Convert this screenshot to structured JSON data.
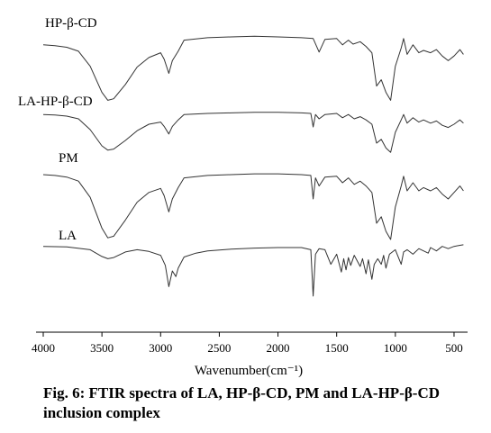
{
  "chart_data": {
    "type": "line",
    "title": "",
    "xlabel": "Wavenumber(cm⁻¹)",
    "ylabel": "",
    "x_reversed": true,
    "xlim": [
      4000,
      400
    ],
    "x_ticks": [
      "4000",
      "3500",
      "3000",
      "2500",
      "2000",
      "1500",
      "1000",
      "500"
    ],
    "grid": false,
    "y_axis_visible": false,
    "line_color": "#333333",
    "series": [
      {
        "name": "HP-β-CD",
        "points": [
          [
            4000,
            0.82
          ],
          [
            3900,
            0.81
          ],
          [
            3800,
            0.79
          ],
          [
            3700,
            0.74
          ],
          [
            3600,
            0.55
          ],
          [
            3500,
            0.22
          ],
          [
            3450,
            0.12
          ],
          [
            3400,
            0.14
          ],
          [
            3300,
            0.32
          ],
          [
            3200,
            0.54
          ],
          [
            3100,
            0.66
          ],
          [
            3000,
            0.72
          ],
          [
            2970,
            0.64
          ],
          [
            2930,
            0.46
          ],
          [
            2900,
            0.62
          ],
          [
            2850,
            0.74
          ],
          [
            2800,
            0.88
          ],
          [
            2600,
            0.91
          ],
          [
            2400,
            0.92
          ],
          [
            2200,
            0.93
          ],
          [
            2000,
            0.92
          ],
          [
            1800,
            0.91
          ],
          [
            1700,
            0.9
          ],
          [
            1650,
            0.73
          ],
          [
            1600,
            0.89
          ],
          [
            1500,
            0.9
          ],
          [
            1450,
            0.82
          ],
          [
            1400,
            0.88
          ],
          [
            1360,
            0.83
          ],
          [
            1300,
            0.86
          ],
          [
            1250,
            0.8
          ],
          [
            1200,
            0.72
          ],
          [
            1160,
            0.3
          ],
          [
            1120,
            0.38
          ],
          [
            1080,
            0.22
          ],
          [
            1040,
            0.12
          ],
          [
            1000,
            0.55
          ],
          [
            950,
            0.78
          ],
          [
            930,
            0.9
          ],
          [
            900,
            0.7
          ],
          [
            850,
            0.82
          ],
          [
            800,
            0.72
          ],
          [
            760,
            0.75
          ],
          [
            700,
            0.72
          ],
          [
            650,
            0.76
          ],
          [
            600,
            0.68
          ],
          [
            550,
            0.62
          ],
          [
            500,
            0.68
          ],
          [
            450,
            0.76
          ],
          [
            420,
            0.7
          ]
        ]
      },
      {
        "name": "LA-HP-β-CD",
        "points": [
          [
            4000,
            0.88
          ],
          [
            3900,
            0.87
          ],
          [
            3800,
            0.85
          ],
          [
            3700,
            0.8
          ],
          [
            3600,
            0.6
          ],
          [
            3500,
            0.3
          ],
          [
            3450,
            0.22
          ],
          [
            3400,
            0.24
          ],
          [
            3300,
            0.4
          ],
          [
            3200,
            0.58
          ],
          [
            3100,
            0.7
          ],
          [
            3000,
            0.74
          ],
          [
            2970,
            0.66
          ],
          [
            2930,
            0.52
          ],
          [
            2900,
            0.66
          ],
          [
            2850,
            0.78
          ],
          [
            2800,
            0.88
          ],
          [
            2600,
            0.9
          ],
          [
            2400,
            0.91
          ],
          [
            2200,
            0.92
          ],
          [
            2000,
            0.92
          ],
          [
            1800,
            0.91
          ],
          [
            1720,
            0.9
          ],
          [
            1700,
            0.65
          ],
          [
            1680,
            0.88
          ],
          [
            1650,
            0.8
          ],
          [
            1600,
            0.88
          ],
          [
            1500,
            0.9
          ],
          [
            1450,
            0.82
          ],
          [
            1400,
            0.88
          ],
          [
            1350,
            0.8
          ],
          [
            1300,
            0.84
          ],
          [
            1250,
            0.78
          ],
          [
            1200,
            0.7
          ],
          [
            1160,
            0.35
          ],
          [
            1120,
            0.42
          ],
          [
            1080,
            0.26
          ],
          [
            1040,
            0.18
          ],
          [
            1000,
            0.55
          ],
          [
            950,
            0.78
          ],
          [
            930,
            0.88
          ],
          [
            900,
            0.72
          ],
          [
            850,
            0.82
          ],
          [
            800,
            0.74
          ],
          [
            760,
            0.78
          ],
          [
            700,
            0.72
          ],
          [
            650,
            0.76
          ],
          [
            600,
            0.68
          ],
          [
            550,
            0.64
          ],
          [
            500,
            0.7
          ],
          [
            450,
            0.78
          ],
          [
            420,
            0.72
          ]
        ]
      },
      {
        "name": "PM",
        "points": [
          [
            4000,
            0.9
          ],
          [
            3900,
            0.89
          ],
          [
            3800,
            0.87
          ],
          [
            3700,
            0.82
          ],
          [
            3600,
            0.62
          ],
          [
            3500,
            0.24
          ],
          [
            3450,
            0.12
          ],
          [
            3400,
            0.14
          ],
          [
            3300,
            0.34
          ],
          [
            3200,
            0.56
          ],
          [
            3100,
            0.68
          ],
          [
            3000,
            0.73
          ],
          [
            2970,
            0.64
          ],
          [
            2930,
            0.44
          ],
          [
            2900,
            0.6
          ],
          [
            2850,
            0.74
          ],
          [
            2800,
            0.86
          ],
          [
            2600,
            0.89
          ],
          [
            2400,
            0.9
          ],
          [
            2200,
            0.91
          ],
          [
            2000,
            0.91
          ],
          [
            1800,
            0.9
          ],
          [
            1720,
            0.89
          ],
          [
            1700,
            0.6
          ],
          [
            1680,
            0.86
          ],
          [
            1650,
            0.76
          ],
          [
            1600,
            0.87
          ],
          [
            1500,
            0.88
          ],
          [
            1450,
            0.8
          ],
          [
            1400,
            0.86
          ],
          [
            1350,
            0.78
          ],
          [
            1300,
            0.82
          ],
          [
            1250,
            0.76
          ],
          [
            1200,
            0.68
          ],
          [
            1160,
            0.3
          ],
          [
            1120,
            0.38
          ],
          [
            1080,
            0.2
          ],
          [
            1040,
            0.1
          ],
          [
            1000,
            0.5
          ],
          [
            950,
            0.76
          ],
          [
            930,
            0.88
          ],
          [
            900,
            0.7
          ],
          [
            850,
            0.8
          ],
          [
            800,
            0.7
          ],
          [
            760,
            0.74
          ],
          [
            700,
            0.7
          ],
          [
            650,
            0.74
          ],
          [
            600,
            0.66
          ],
          [
            550,
            0.6
          ],
          [
            500,
            0.68
          ],
          [
            450,
            0.76
          ],
          [
            420,
            0.7
          ]
        ]
      },
      {
        "name": "LA",
        "points": [
          [
            4000,
            0.94
          ],
          [
            3800,
            0.93
          ],
          [
            3600,
            0.88
          ],
          [
            3500,
            0.76
          ],
          [
            3450,
            0.72
          ],
          [
            3400,
            0.74
          ],
          [
            3300,
            0.84
          ],
          [
            3200,
            0.88
          ],
          [
            3100,
            0.85
          ],
          [
            3000,
            0.78
          ],
          [
            2960,
            0.6
          ],
          [
            2930,
            0.22
          ],
          [
            2900,
            0.5
          ],
          [
            2870,
            0.4
          ],
          [
            2850,
            0.55
          ],
          [
            2800,
            0.75
          ],
          [
            2700,
            0.82
          ],
          [
            2600,
            0.86
          ],
          [
            2400,
            0.89
          ],
          [
            2200,
            0.91
          ],
          [
            2000,
            0.92
          ],
          [
            1800,
            0.92
          ],
          [
            1720,
            0.88
          ],
          [
            1700,
            0.05
          ],
          [
            1680,
            0.8
          ],
          [
            1650,
            0.9
          ],
          [
            1600,
            0.88
          ],
          [
            1550,
            0.62
          ],
          [
            1500,
            0.8
          ],
          [
            1460,
            0.48
          ],
          [
            1440,
            0.72
          ],
          [
            1420,
            0.52
          ],
          [
            1400,
            0.74
          ],
          [
            1380,
            0.6
          ],
          [
            1350,
            0.78
          ],
          [
            1300,
            0.58
          ],
          [
            1280,
            0.72
          ],
          [
            1250,
            0.45
          ],
          [
            1230,
            0.7
          ],
          [
            1200,
            0.35
          ],
          [
            1180,
            0.62
          ],
          [
            1150,
            0.72
          ],
          [
            1120,
            0.62
          ],
          [
            1100,
            0.78
          ],
          [
            1080,
            0.55
          ],
          [
            1050,
            0.8
          ],
          [
            1000,
            0.88
          ],
          [
            950,
            0.62
          ],
          [
            930,
            0.84
          ],
          [
            900,
            0.88
          ],
          [
            850,
            0.8
          ],
          [
            800,
            0.9
          ],
          [
            760,
            0.86
          ],
          [
            720,
            0.82
          ],
          [
            700,
            0.92
          ],
          [
            650,
            0.86
          ],
          [
            600,
            0.94
          ],
          [
            550,
            0.9
          ],
          [
            500,
            0.94
          ],
          [
            450,
            0.96
          ],
          [
            420,
            0.97
          ]
        ]
      }
    ]
  },
  "caption": {
    "text": "Fig. 6: FTIR spectra of LA, HP-β-CD, PM and LA-HP-β-CD inclusion complex"
  }
}
